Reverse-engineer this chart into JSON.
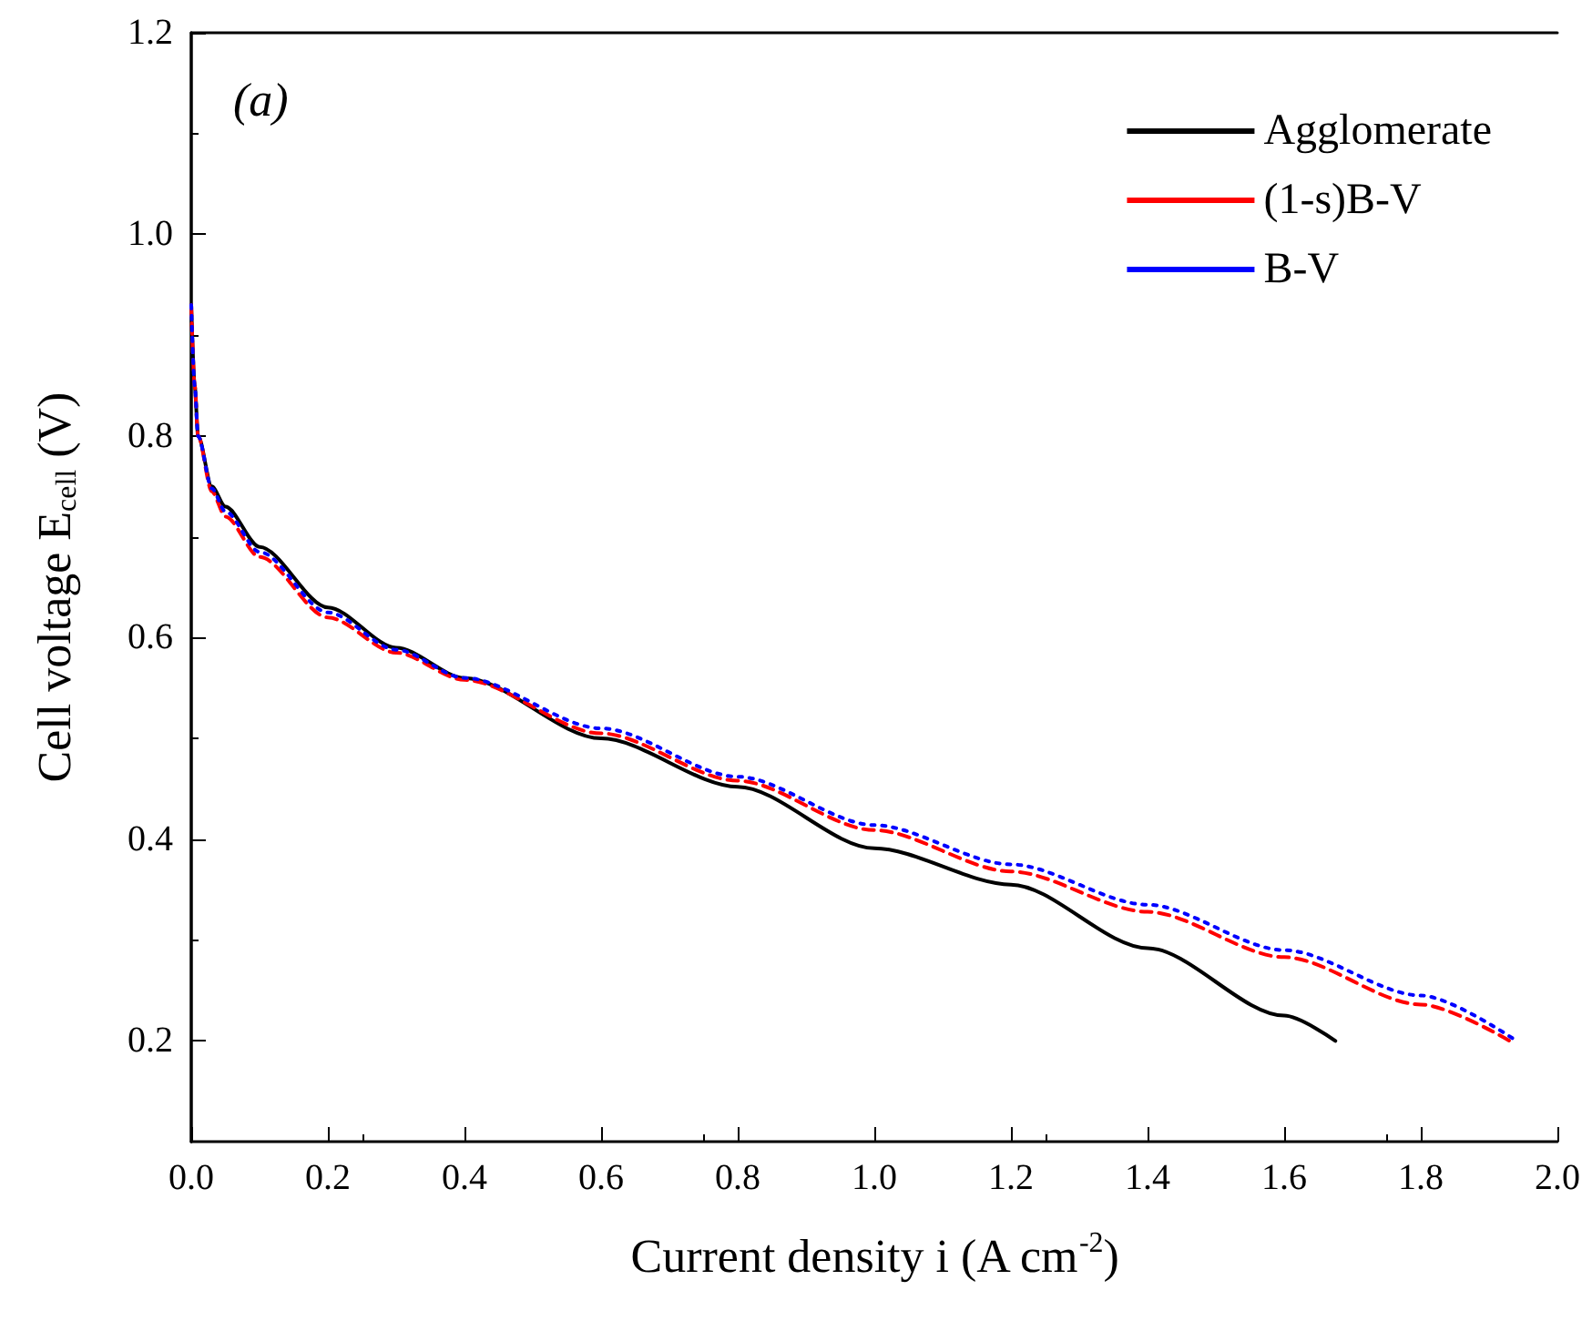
{
  "chart_data": {
    "type": "line",
    "xlabel": "Current density i (A cm$^{-2}$)",
    "ylabel": "Cell voltage E$_{cell}$ (V)",
    "annotations": [
      "(a)"
    ],
    "xlim": [
      0,
      2.0
    ],
    "ylim": [
      0.1,
      1.2
    ],
    "xticks": [
      {
        "value": 0,
        "label": "0.0"
      },
      {
        "value": 0.2,
        "label": "0.2"
      },
      {
        "value": 0.4,
        "label": "0.4"
      },
      {
        "value": 0.6,
        "label": "0.6"
      },
      {
        "value": 0.8,
        "label": "0.8"
      },
      {
        "value": 1.0,
        "label": "1.0"
      },
      {
        "value": 1.2,
        "label": "1.2"
      },
      {
        "value": 1.4,
        "label": "1.4"
      },
      {
        "value": 1.6,
        "label": "1.6"
      },
      {
        "value": 1.8,
        "label": "1.8"
      },
      {
        "value": 2.0,
        "label": "2.0"
      }
    ],
    "yticks": [
      {
        "value": 0.2,
        "label": "0.2"
      },
      {
        "value": 0.4,
        "label": "0.4"
      },
      {
        "value": 0.6,
        "label": "0.6"
      },
      {
        "value": 0.8,
        "label": "0.8"
      },
      {
        "value": 1.0,
        "label": "1.0"
      },
      {
        "value": 1.2,
        "label": "1.2"
      }
    ],
    "grid": false,
    "legend": "top right",
    "marker": "none",
    "series": [
      {
        "name": "Agglomerate",
        "color": "#000000",
        "line_style": "solid",
        "x": [
          0,
          0.005,
          0.01,
          0.03,
          0.05,
          0.1,
          0.2,
          0.3,
          0.4,
          0.6,
          0.8,
          1.0,
          1.2,
          1.4,
          1.6,
          1.675
        ],
        "values": [
          0.93,
          0.85,
          0.8,
          0.75,
          0.73,
          0.69,
          0.63,
          0.59,
          0.56,
          0.5,
          0.452,
          0.391,
          0.355,
          0.292,
          0.225,
          0.2
        ]
      },
      {
        "name": "(1-s)B-V",
        "color": "#ff0000",
        "line_style": "dashed",
        "x": [
          0,
          0.005,
          0.01,
          0.03,
          0.05,
          0.1,
          0.2,
          0.3,
          0.4,
          0.6,
          0.8,
          1.0,
          1.2,
          1.4,
          1.6,
          1.8,
          1.93
        ],
        "values": [
          0.93,
          0.85,
          0.8,
          0.745,
          0.72,
          0.68,
          0.62,
          0.585,
          0.558,
          0.505,
          0.458,
          0.409,
          0.368,
          0.328,
          0.283,
          0.236,
          0.2
        ]
      },
      {
        "name": "B-V",
        "color": "#0000ff",
        "line_style": "dotted",
        "x": [
          0,
          0.005,
          0.01,
          0.03,
          0.05,
          0.1,
          0.2,
          0.3,
          0.4,
          0.6,
          0.8,
          1.0,
          1.2,
          1.4,
          1.6,
          1.8,
          1.94
        ],
        "values": [
          0.93,
          0.85,
          0.8,
          0.748,
          0.725,
          0.685,
          0.625,
          0.588,
          0.56,
          0.51,
          0.462,
          0.414,
          0.375,
          0.335,
          0.29,
          0.245,
          0.2
        ]
      }
    ]
  }
}
